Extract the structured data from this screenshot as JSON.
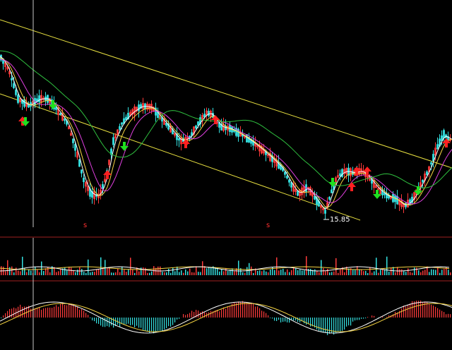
{
  "colors": {
    "background": "#000000",
    "up_candle": "#ff3b3b",
    "down_candle": "#35e0e0",
    "ma_short": "#ffffff",
    "ma_mid": "#f5d442",
    "ma_long": "#e040e0",
    "ma_very_long": "#2fbf3f",
    "trendline": "#e8e040",
    "divider": "#a02020",
    "cursor": "#c8c8c8",
    "buy_arrow": "#ff2020",
    "sell_arrow": "#20e020",
    "marker_text": "#ff3030"
  },
  "price_panel": {
    "low_label": "15.85",
    "markers": [
      {
        "icon": "s-marker",
        "text": "s"
      },
      {
        "icon": "s-marker",
        "text": "s"
      }
    ],
    "signals": [
      {
        "type": "buy",
        "icon": "up-arrow-icon"
      },
      {
        "type": "sell",
        "icon": "down-arrow-icon"
      },
      {
        "type": "buy",
        "icon": "up-arrow-icon"
      },
      {
        "type": "sell",
        "icon": "down-arrow-icon"
      },
      {
        "type": "buy",
        "icon": "up-arrow-icon"
      },
      {
        "type": "buy",
        "icon": "up-arrow-icon"
      },
      {
        "type": "sell",
        "icon": "down-arrow-icon"
      },
      {
        "type": "buy",
        "icon": "up-arrow-icon"
      },
      {
        "type": "buy",
        "icon": "up-arrow-icon"
      },
      {
        "type": "buy",
        "icon": "up-arrow-icon"
      },
      {
        "type": "sell",
        "icon": "down-arrow-icon"
      },
      {
        "type": "sell",
        "icon": "down-arrow-icon"
      },
      {
        "type": "buy",
        "icon": "up-arrow-icon"
      },
      {
        "type": "sell",
        "icon": "down-arrow-icon"
      }
    ]
  }
}
